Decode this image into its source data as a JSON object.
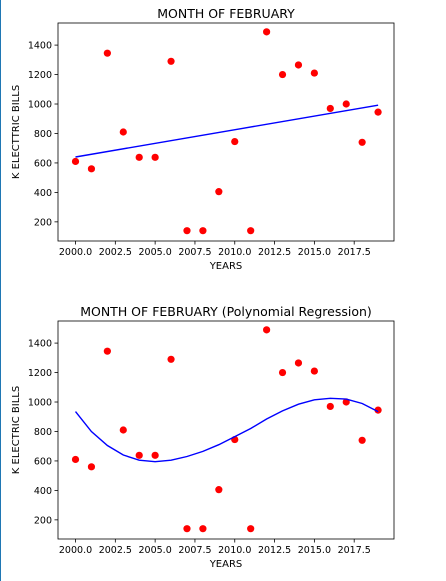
{
  "chart_data": [
    {
      "type": "scatter",
      "title": "MONTH OF FEBRUARY",
      "xlabel": "YEARS",
      "ylabel": "K ELECTTRIC BILLS",
      "xlim": [
        1998.9,
        2020.0
      ],
      "ylim": [
        70,
        1550
      ],
      "xticks": [
        "2000.0",
        "2002.5",
        "2005.0",
        "2007.5",
        "2010.0",
        "2012.5",
        "2015.0",
        "2017.5"
      ],
      "yticks": [
        "200",
        "400",
        "600",
        "800",
        "1000",
        "1200",
        "1400"
      ],
      "grid": false,
      "series": [
        {
          "kind": "points",
          "color": "#ff0000",
          "x": [
            2000,
            2001,
            2002,
            2003,
            2004,
            2005,
            2006,
            2007,
            2008,
            2009,
            2010,
            2011,
            2012,
            2013,
            2014,
            2015,
            2016,
            2017,
            2018,
            2019
          ],
          "y": [
            610,
            560,
            1345,
            810,
            638,
            638,
            1290,
            140,
            140,
            405,
            745,
            140,
            1490,
            1200,
            1265,
            1210,
            970,
            1000,
            740,
            945
          ]
        },
        {
          "kind": "line",
          "color": "#0000ff",
          "x": [
            2000,
            2019
          ],
          "y": [
            640,
            992
          ]
        }
      ]
    },
    {
      "type": "scatter",
      "title": "MONTH OF FEBRUARY (Polynomial Regression)",
      "xlabel": "YEARS",
      "ylabel": "K ELECTRIC BILLS",
      "xlim": [
        1998.9,
        2020.0
      ],
      "ylim": [
        70,
        1550
      ],
      "xticks": [
        "2000.0",
        "2002.5",
        "2005.0",
        "2007.5",
        "2010.0",
        "2012.5",
        "2015.0",
        "2017.5"
      ],
      "yticks": [
        "200",
        "400",
        "600",
        "800",
        "1000",
        "1200",
        "1400"
      ],
      "grid": false,
      "series": [
        {
          "kind": "points",
          "color": "#ff0000",
          "x": [
            2000,
            2001,
            2002,
            2003,
            2004,
            2005,
            2006,
            2007,
            2008,
            2009,
            2010,
            2011,
            2012,
            2013,
            2014,
            2015,
            2016,
            2017,
            2018,
            2019
          ],
          "y": [
            610,
            560,
            1345,
            810,
            638,
            638,
            1290,
            140,
            140,
            405,
            745,
            140,
            1490,
            1200,
            1265,
            1210,
            970,
            1000,
            740,
            945
          ]
        },
        {
          "kind": "line",
          "color": "#0000ff",
          "x": [
            2000,
            2001,
            2002,
            2003,
            2004,
            2005,
            2006,
            2007,
            2008,
            2009,
            2010,
            2011,
            2012,
            2013,
            2014,
            2015,
            2016,
            2017,
            2018,
            2019
          ],
          "y": [
            935,
            800,
            705,
            640,
            605,
            595,
            605,
            630,
            665,
            710,
            765,
            820,
            885,
            940,
            985,
            1015,
            1025,
            1020,
            990,
            935
          ]
        }
      ]
    }
  ]
}
